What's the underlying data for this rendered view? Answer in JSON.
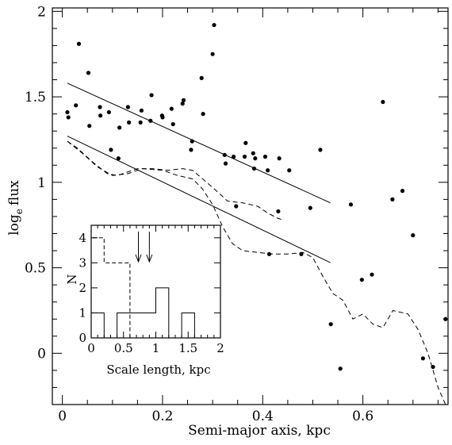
{
  "chart_data": [
    {
      "type": "scatter",
      "xlabel": "Semi-major axis, kpc",
      "ylabel_main": "log",
      "ylabel_sub": "e",
      "ylabel_tail": "flux",
      "xlim": [
        -0.02,
        0.77
      ],
      "ylim": [
        -0.3,
        2.02
      ],
      "x_ticks": [
        {
          "v": 0,
          "label": "0"
        },
        {
          "v": 0.2,
          "label": "0.2"
        },
        {
          "v": 0.4,
          "label": "0.4"
        },
        {
          "v": 0.6,
          "label": "0.6"
        }
      ],
      "y_ticks": [
        {
          "v": 0,
          "label": "0"
        },
        {
          "v": 0.5,
          "label": "0.5"
        },
        {
          "v": 1,
          "label": "1"
        },
        {
          "v": 1.5,
          "label": "1.5"
        },
        {
          "v": 2,
          "label": "2"
        }
      ],
      "series": [
        {
          "type": "scatter",
          "points": [
            [
              0.01,
              1.41
            ],
            [
              0.012,
              1.38
            ],
            [
              0.027,
              1.45
            ],
            [
              0.033,
              1.81
            ],
            [
              0.052,
              1.64
            ],
            [
              0.054,
              1.33
            ],
            [
              0.075,
              1.44
            ],
            [
              0.076,
              1.39
            ],
            [
              0.093,
              1.41
            ],
            [
              0.097,
              1.19
            ],
            [
              0.112,
              1.14
            ],
            [
              0.114,
              1.32
            ],
            [
              0.131,
              1.44
            ],
            [
              0.133,
              1.35
            ],
            [
              0.156,
              1.35
            ],
            [
              0.158,
              1.42
            ],
            [
              0.176,
              1.36
            ],
            [
              0.178,
              1.51
            ],
            [
              0.199,
              1.39
            ],
            [
              0.2,
              1.38
            ],
            [
              0.218,
              1.43
            ],
            [
              0.221,
              1.34
            ],
            [
              0.24,
              1.46
            ],
            [
              0.242,
              1.48
            ],
            [
              0.257,
              1.19
            ],
            [
              0.259,
              1.24
            ],
            [
              0.278,
              1.61
            ],
            [
              0.281,
              1.4
            ],
            [
              0.3,
              1.75
            ],
            [
              0.303,
              1.92
            ],
            [
              0.324,
              1.16
            ],
            [
              0.326,
              1.11
            ],
            [
              0.342,
              1.15
            ],
            [
              0.347,
              0.86
            ],
            [
              0.364,
              1.15
            ],
            [
              0.366,
              1.23
            ],
            [
              0.381,
              1.17
            ],
            [
              0.383,
              1.08
            ],
            [
              0.385,
              1.14
            ],
            [
              0.405,
              1.15
            ],
            [
              0.41,
              1.07
            ],
            [
              0.413,
              0.58
            ],
            [
              0.431,
              0.83
            ],
            [
              0.433,
              1.14
            ],
            [
              0.453,
              1.07
            ],
            [
              0.477,
              0.58
            ],
            [
              0.495,
              0.85
            ],
            [
              0.515,
              1.19
            ],
            [
              0.536,
              0.17
            ],
            [
              0.555,
              -0.09
            ],
            [
              0.576,
              0.87
            ],
            [
              0.598,
              0.43
            ],
            [
              0.618,
              0.46
            ],
            [
              0.64,
              1.47
            ],
            [
              0.659,
              0.9
            ],
            [
              0.679,
              0.95
            ],
            [
              0.7,
              0.69
            ],
            [
              0.72,
              -0.03
            ],
            [
              0.74,
              -0.08
            ],
            [
              0.765,
              0.2
            ]
          ]
        },
        {
          "type": "line",
          "style": "solid",
          "points": [
            [
              0.01,
              1.58
            ],
            [
              0.535,
              0.88
            ]
          ]
        },
        {
          "type": "line",
          "style": "solid",
          "points": [
            [
              0.01,
              1.27
            ],
            [
              0.535,
              0.53
            ]
          ]
        },
        {
          "type": "line",
          "style": "dashed",
          "points": [
            [
              0.01,
              1.24
            ],
            [
              0.03,
              1.2
            ],
            [
              0.06,
              1.12
            ],
            [
              0.09,
              1.05
            ],
            [
              0.11,
              1.04
            ],
            [
              0.13,
              1.06
            ],
            [
              0.15,
              1.08
            ],
            [
              0.18,
              1.08
            ],
            [
              0.21,
              1.07
            ],
            [
              0.24,
              1.08
            ],
            [
              0.26,
              1.07
            ],
            [
              0.28,
              1.02
            ],
            [
              0.3,
              0.97
            ],
            [
              0.33,
              0.89
            ],
            [
              0.36,
              0.88
            ],
            [
              0.39,
              0.86
            ],
            [
              0.41,
              0.82
            ],
            [
              0.43,
              0.79
            ],
            [
              0.44,
              0.78
            ]
          ]
        },
        {
          "type": "line",
          "style": "dashed",
          "points": [
            [
              0.01,
              1.24
            ],
            [
              0.04,
              1.17
            ],
            [
              0.07,
              1.09
            ],
            [
              0.1,
              1.04
            ],
            [
              0.13,
              1.05
            ],
            [
              0.16,
              1.08
            ],
            [
              0.2,
              1.07
            ],
            [
              0.23,
              1.04
            ],
            [
              0.26,
              1.02
            ],
            [
              0.28,
              0.96
            ],
            [
              0.3,
              0.87
            ],
            [
              0.32,
              0.74
            ],
            [
              0.34,
              0.64
            ],
            [
              0.36,
              0.6
            ],
            [
              0.39,
              0.59
            ],
            [
              0.42,
              0.58
            ],
            [
              0.45,
              0.58
            ],
            [
              0.48,
              0.59
            ],
            [
              0.5,
              0.56
            ],
            [
              0.52,
              0.45
            ],
            [
              0.54,
              0.35
            ],
            [
              0.56,
              0.31
            ],
            [
              0.58,
              0.2
            ],
            [
              0.6,
              0.23
            ],
            [
              0.62,
              0.17
            ],
            [
              0.64,
              0.15
            ],
            [
              0.66,
              0.25
            ],
            [
              0.69,
              0.23
            ],
            [
              0.71,
              0.14
            ],
            [
              0.73,
              0.0
            ],
            [
              0.75,
              -0.2
            ],
            [
              0.765,
              -0.3
            ]
          ]
        }
      ]
    },
    {
      "type": "histogram",
      "xlabel": "Scale length, kpc",
      "ylabel": "N",
      "xlim": [
        0,
        2
      ],
      "ylim": [
        0,
        4.5
      ],
      "x_ticks": [
        {
          "v": 0,
          "label": "0"
        },
        {
          "v": 0.5,
          "label": "0.5"
        },
        {
          "v": 1,
          "label": "1"
        },
        {
          "v": 1.5,
          "label": "1.5"
        },
        {
          "v": 2,
          "label": "2"
        }
      ],
      "y_ticks": [
        {
          "v": 0,
          "label": "0"
        },
        {
          "v": 1,
          "label": "1"
        },
        {
          "v": 2,
          "label": "2"
        },
        {
          "v": 3,
          "label": "3"
        },
        {
          "v": 4,
          "label": "4"
        }
      ],
      "solid_hist": {
        "edges": [
          0,
          0.2,
          0.4,
          0.6,
          0.8,
          1.0,
          1.2,
          1.4,
          1.6
        ],
        "counts": [
          1,
          0,
          1,
          1,
          1,
          2,
          0,
          1
        ]
      },
      "dashed_hist": {
        "edges": [
          0,
          0.2,
          0.6
        ],
        "counts": [
          4,
          3
        ]
      },
      "arrows": [
        0.73,
        0.9
      ]
    }
  ]
}
